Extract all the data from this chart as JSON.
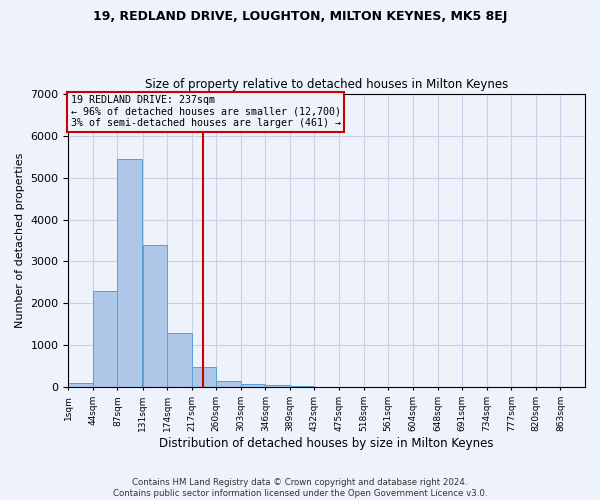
{
  "title1": "19, REDLAND DRIVE, LOUGHTON, MILTON KEYNES, MK5 8EJ",
  "title2": "Size of property relative to detached houses in Milton Keynes",
  "xlabel": "Distribution of detached houses by size in Milton Keynes",
  "ylabel": "Number of detached properties",
  "footnote1": "Contains HM Land Registry data © Crown copyright and database right 2024.",
  "footnote2": "Contains public sector information licensed under the Open Government Licence v3.0.",
  "annotation_line1": "19 REDLAND DRIVE: 237sqm",
  "annotation_line2": "← 96% of detached houses are smaller (12,700)",
  "annotation_line3": "3% of semi-detached houses are larger (461) →",
  "property_size": 237,
  "bin_edges": [
    1,
    44,
    87,
    131,
    174,
    217,
    260,
    303,
    346,
    389,
    432,
    475,
    518,
    561,
    604,
    648,
    691,
    734,
    777,
    820,
    863
  ],
  "bar_heights": [
    100,
    2300,
    5450,
    3400,
    1300,
    475,
    150,
    85,
    50,
    30,
    15,
    10,
    5,
    3,
    2,
    1,
    1,
    0,
    0,
    0
  ],
  "bar_color": "#aec6e8",
  "bar_edge_color": "#5a9fd4",
  "red_line_color": "#cc0000",
  "annotation_box_color": "#cc0000",
  "background_color": "#eef2fb",
  "grid_color": "#c8d0e8",
  "ylim": [
    0,
    7000
  ],
  "yticks": [
    0,
    1000,
    2000,
    3000,
    4000,
    5000,
    6000,
    7000
  ]
}
